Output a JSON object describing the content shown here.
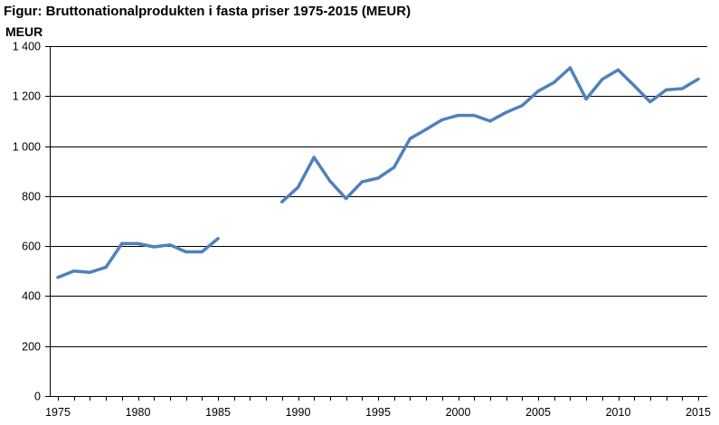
{
  "title": "Figur: Bruttonationalprodukten i fasta priser 1975-2015 (MEUR)",
  "ylabel": "MEUR",
  "colors": {
    "line": "#4f81bd",
    "grid": "#000000",
    "axis": "#000000"
  },
  "chart_data": {
    "type": "line",
    "title": "Figur: Bruttonationalprodukten i fasta priser 1975-2015 (MEUR)",
    "xlabel": "",
    "ylabel": "MEUR",
    "xlim": [
      1975,
      2015
    ],
    "ylim": [
      0,
      1400
    ],
    "grid": true,
    "legend": "none",
    "x_tick_labels": [
      "1975",
      "1980",
      "1985",
      "1990",
      "1995",
      "2000",
      "2005",
      "2010",
      "2015"
    ],
    "y_tick_labels": [
      "0",
      "200",
      "400",
      "600",
      "800",
      "1 000",
      "1 200",
      "1 400"
    ],
    "series": [
      {
        "color": "#4f81bd",
        "points": [
          [
            1975,
            475
          ],
          [
            1976,
            500
          ],
          [
            1977,
            495
          ],
          [
            1978,
            515
          ],
          [
            1979,
            610
          ],
          [
            1980,
            610
          ],
          [
            1981,
            597
          ],
          [
            1982,
            605
          ],
          [
            1983,
            577
          ],
          [
            1984,
            577
          ],
          [
            1985,
            630
          ],
          [
            1989,
            777
          ],
          [
            1990,
            835
          ],
          [
            1991,
            955
          ],
          [
            1992,
            860
          ],
          [
            1993,
            790
          ],
          [
            1994,
            857
          ],
          [
            1995,
            872
          ],
          [
            1996,
            915
          ],
          [
            1997,
            1030
          ],
          [
            1998,
            1067
          ],
          [
            1999,
            1105
          ],
          [
            2000,
            1123
          ],
          [
            2001,
            1123
          ],
          [
            2002,
            1100
          ],
          [
            2003,
            1135
          ],
          [
            2004,
            1162
          ],
          [
            2005,
            1220
          ],
          [
            2006,
            1255
          ],
          [
            2007,
            1313
          ],
          [
            2008,
            1188
          ],
          [
            2009,
            1267
          ],
          [
            2010,
            1305
          ],
          [
            2011,
            1242
          ],
          [
            2012,
            1177
          ],
          [
            2013,
            1225
          ],
          [
            2014,
            1230
          ],
          [
            2015,
            1268
          ]
        ]
      }
    ]
  }
}
